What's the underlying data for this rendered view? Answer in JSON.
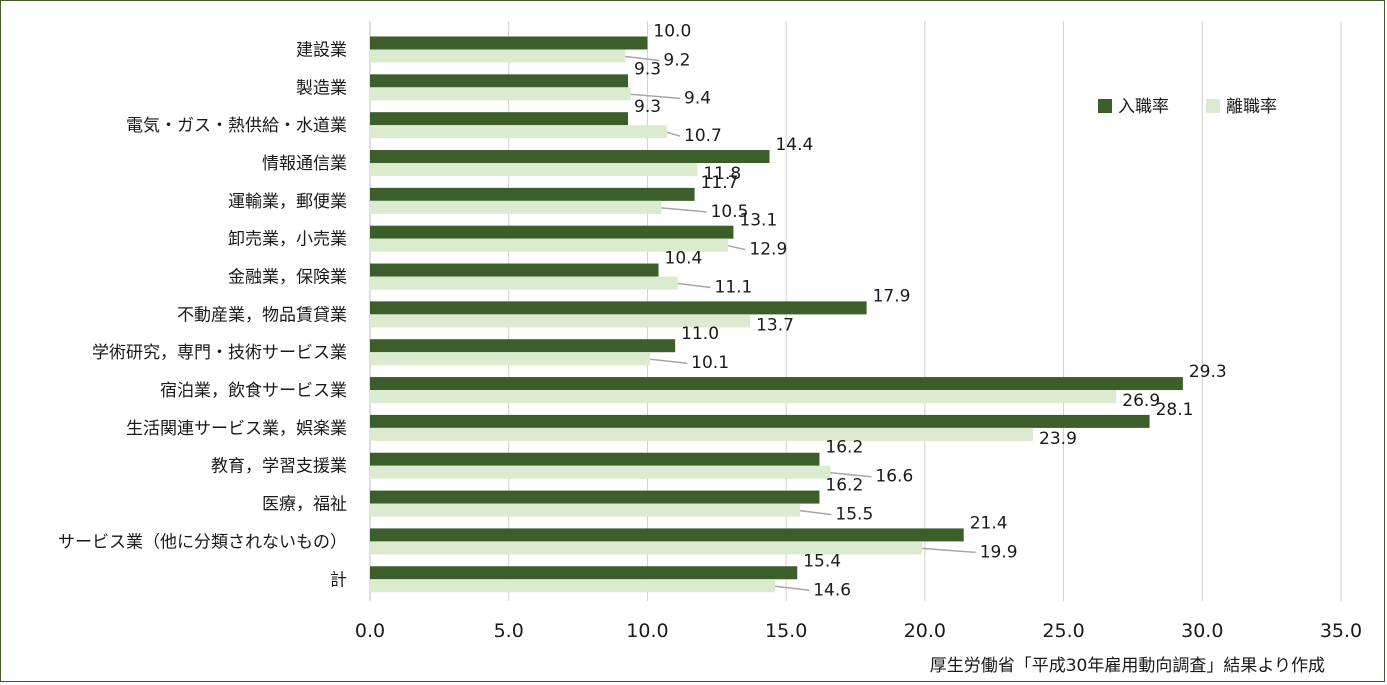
{
  "chart_data": {
    "type": "bar",
    "orientation": "horizontal",
    "categories": [
      "建設業",
      "製造業",
      "電気・ガス・熱供給・水道業",
      "情報通信業",
      "運輸業，郵便業",
      "卸売業，小売業",
      "金融業，保険業",
      "不動産業，物品賃貸業",
      "学術研究，専門・技術サービス業",
      "宿泊業，飲食サービス業",
      "生活関連サービス業，娯楽業",
      "教育，学習支援業",
      "医療，福祉",
      "サービス業（他に分類されないもの）",
      "計"
    ],
    "series": [
      {
        "name": "入職率",
        "color": "#3b5e2b",
        "values": [
          10.0,
          9.3,
          9.3,
          14.4,
          11.7,
          13.1,
          10.4,
          17.9,
          11.0,
          29.3,
          28.1,
          16.2,
          16.2,
          21.4,
          15.4
        ],
        "labels": [
          "10.0",
          "9.3",
          "9.3",
          "14.4",
          "11.7",
          "13.1",
          "10.4",
          "17.9",
          "11.0",
          "29.3",
          "28.1",
          "16.2",
          "16.2",
          "21.4",
          "15.4"
        ]
      },
      {
        "name": "離職率",
        "color": "#dcebd0",
        "values": [
          9.2,
          9.4,
          10.7,
          11.8,
          10.5,
          12.9,
          11.1,
          13.7,
          10.1,
          26.9,
          23.9,
          16.6,
          15.5,
          19.9,
          14.6
        ],
        "labels": [
          "9.2",
          "9.4",
          "10.7",
          "11.8",
          "10.5",
          "12.9",
          "11.1",
          "13.7",
          "10.1",
          "26.9",
          "23.9",
          "16.6",
          "15.5",
          "19.9",
          "14.6"
        ]
      }
    ],
    "xlim": [
      0,
      35
    ],
    "xticks": [
      0,
      5,
      10,
      15,
      20,
      25,
      30,
      35
    ],
    "xtick_labels": [
      "0.0",
      "5.0",
      "10.0",
      "15.0",
      "20.0",
      "25.0",
      "30.0",
      "35.0"
    ],
    "grid": true,
    "legend_position": "top-right",
    "title": "",
    "xlabel": "",
    "ylabel": ""
  },
  "source_note": "厚生労働省「平成30年雇用動向調査」結果より作成"
}
